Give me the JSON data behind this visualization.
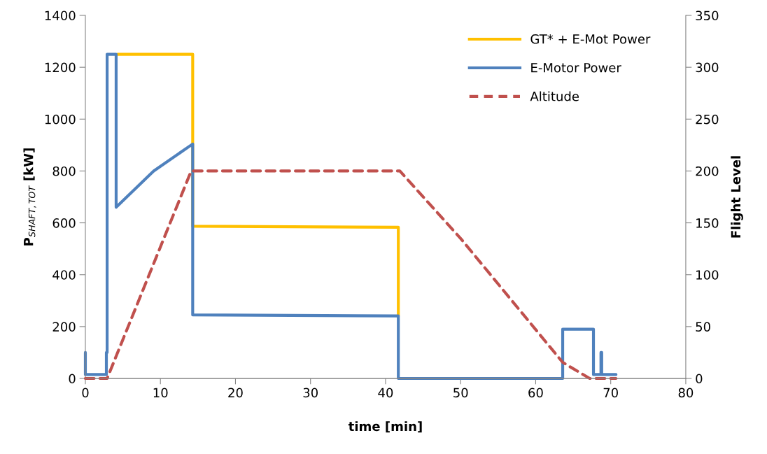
{
  "chart_data": {
    "type": "line",
    "xlabel": "time [min]",
    "ylabel": "P$_{SHAFT,TOT}$ [kW]",
    "y2label": "Flight Level",
    "xlim": [
      0,
      80
    ],
    "xticks": [
      0,
      10,
      20,
      30,
      40,
      50,
      60,
      70,
      80
    ],
    "ylim": [
      0,
      1400
    ],
    "yticks": [
      0,
      200,
      400,
      600,
      800,
      1000,
      1200,
      1400
    ],
    "y2lim": [
      0,
      350
    ],
    "y2ticks": [
      0,
      50,
      100,
      150,
      200,
      250,
      300,
      350
    ],
    "grid": false,
    "legend": "top right",
    "marker": "none",
    "series": [
      {
        "name": "GT* + E-Mot Power",
        "color": "#ffc000",
        "line_style": "solid",
        "x": [
          4.3,
          14.3,
          14.3,
          41.7,
          41.7
        ],
        "values": [
          1250,
          1250,
          587,
          583,
          241
        ]
      },
      {
        "name": "E-Motor Power",
        "color": "#4f81bd",
        "line_style": "solid",
        "x": [
          0,
          0,
          2.8,
          2.8,
          2.9,
          2.9,
          4.1,
          4.1,
          9.1,
          14.3,
          14.3,
          41.7,
          41.7,
          63.6,
          63.6,
          67.7,
          67.7,
          68.7,
          68.7,
          68.8,
          68.8,
          70.7
        ],
        "values": [
          100,
          15,
          15,
          100,
          100,
          1250,
          1250,
          660,
          800,
          904,
          245,
          241,
          0,
          0,
          190,
          190,
          15,
          15,
          100,
          100,
          15,
          15
        ]
      },
      {
        "name": "Altitude",
        "color": "#c0504d",
        "line_style": "dashed",
        "axis": "y2",
        "x": [
          0,
          2.9,
          14.1,
          41.9,
          50,
          63.6,
          67.2,
          70.7
        ],
        "values": [
          0,
          0,
          200,
          200,
          135,
          15.5,
          0,
          0
        ]
      }
    ]
  }
}
